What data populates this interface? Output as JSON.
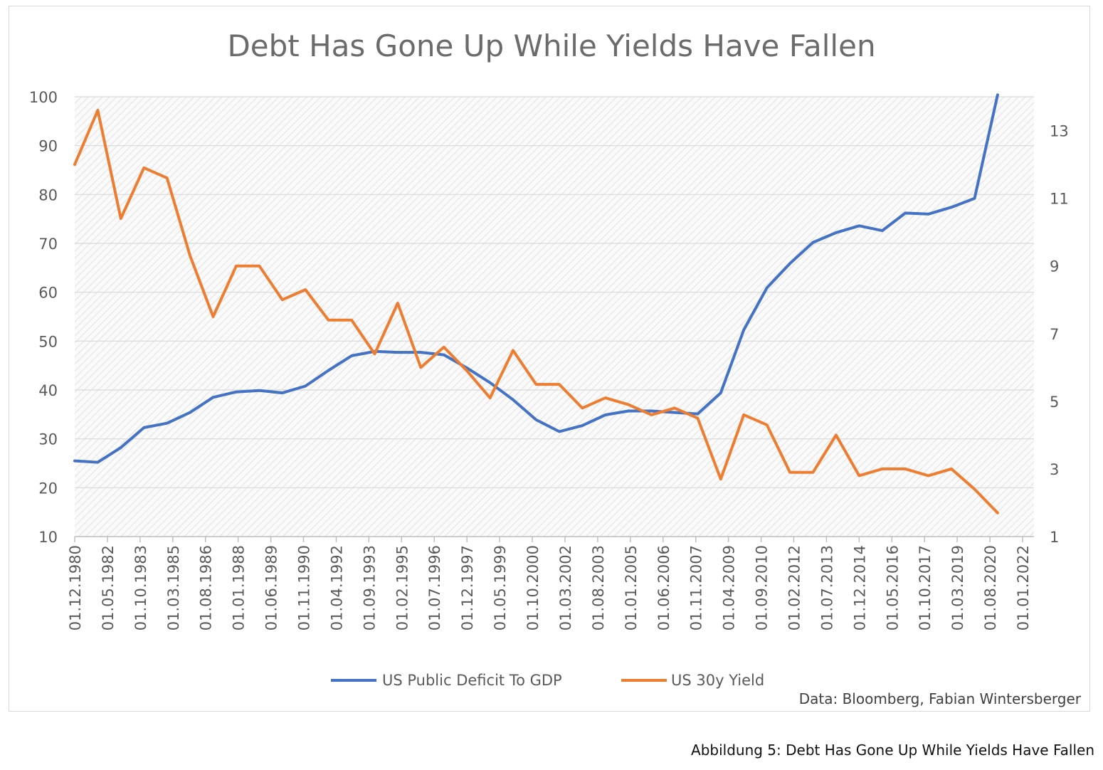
{
  "caption": "Abbildung 5: Debt Has Gone Up While Yields Have Fallen",
  "colors": {
    "deficit": "#4472c4",
    "yield": "#ed7d31",
    "grid": "#d9d9d9",
    "text": "#595959"
  },
  "chart_data": {
    "type": "line",
    "title": "Debt Has Gone Up While Yields Have Fallen",
    "source": "Data: Bloomberg, Fabian Wintersberger",
    "grid": true,
    "legend_position": "bottom",
    "x_tick_labels": [
      "01.12.1980",
      "01.05.1982",
      "01.10.1983",
      "01.03.1985",
      "01.08.1986",
      "01.01.1988",
      "01.06.1989",
      "01.11.1990",
      "01.04.1992",
      "01.09.1993",
      "01.02.1995",
      "01.07.1996",
      "01.12.1997",
      "01.05.1999",
      "01.10.2000",
      "01.03.2002",
      "01.08.2003",
      "01.01.2005",
      "01.06.2006",
      "01.11.2007",
      "01.04.2009",
      "01.09.2010",
      "01.02.2012",
      "01.07.2013",
      "01.12.2014",
      "01.05.2016",
      "01.10.2017",
      "01.03.2019",
      "01.08.2020",
      "01.01.2022"
    ],
    "y_left": {
      "ticks": [
        10,
        20,
        30,
        40,
        50,
        60,
        70,
        80,
        90,
        100
      ],
      "min": 10,
      "max": 100
    },
    "y_right": {
      "ticks": [
        1,
        3,
        5,
        7,
        9,
        11,
        13
      ],
      "min": 1,
      "max": 14
    },
    "x": [
      "1980-12",
      "1981-12",
      "1982-12",
      "1983-12",
      "1984-12",
      "1985-12",
      "1986-12",
      "1987-12",
      "1988-12",
      "1989-12",
      "1990-12",
      "1991-12",
      "1992-12",
      "1993-12",
      "1994-12",
      "1995-12",
      "1996-12",
      "1997-12",
      "1998-12",
      "1999-12",
      "2000-12",
      "2001-12",
      "2002-12",
      "2003-12",
      "2004-12",
      "2005-12",
      "2006-12",
      "2007-12",
      "2008-12",
      "2009-12",
      "2010-12",
      "2011-12",
      "2012-12",
      "2013-12",
      "2014-12",
      "2015-12",
      "2016-12",
      "2017-12",
      "2018-12",
      "2019-12",
      "2020-12"
    ],
    "series": [
      {
        "name": "US Public Deficit To GDP",
        "axis": "left",
        "values": [
          25.5,
          25.2,
          28.2,
          32.3,
          33.2,
          35.4,
          38.5,
          39.6,
          39.9,
          39.4,
          40.8,
          44.0,
          47.0,
          47.9,
          47.7,
          47.7,
          47.2,
          44.5,
          41.5,
          38.0,
          33.9,
          31.5,
          32.7,
          34.9,
          35.7,
          35.7,
          35.4,
          35.1,
          39.4,
          52.3,
          60.9,
          65.9,
          70.2,
          72.2,
          73.6,
          72.6,
          76.2,
          76.0,
          77.4,
          79.2,
          100.4
        ]
      },
      {
        "name": "US 30y Yield",
        "axis": "right",
        "values": [
          12.0,
          13.6,
          10.4,
          11.9,
          11.6,
          9.3,
          7.5,
          9.0,
          9.0,
          8.0,
          8.3,
          7.4,
          7.4,
          6.4,
          7.9,
          6.0,
          6.6,
          5.9,
          5.1,
          6.5,
          5.5,
          5.5,
          4.8,
          5.1,
          4.9,
          4.6,
          4.8,
          4.5,
          2.7,
          4.6,
          4.3,
          2.9,
          2.9,
          4.0,
          2.8,
          3.0,
          3.0,
          2.8,
          3.0,
          2.4,
          1.7
        ]
      }
    ]
  }
}
